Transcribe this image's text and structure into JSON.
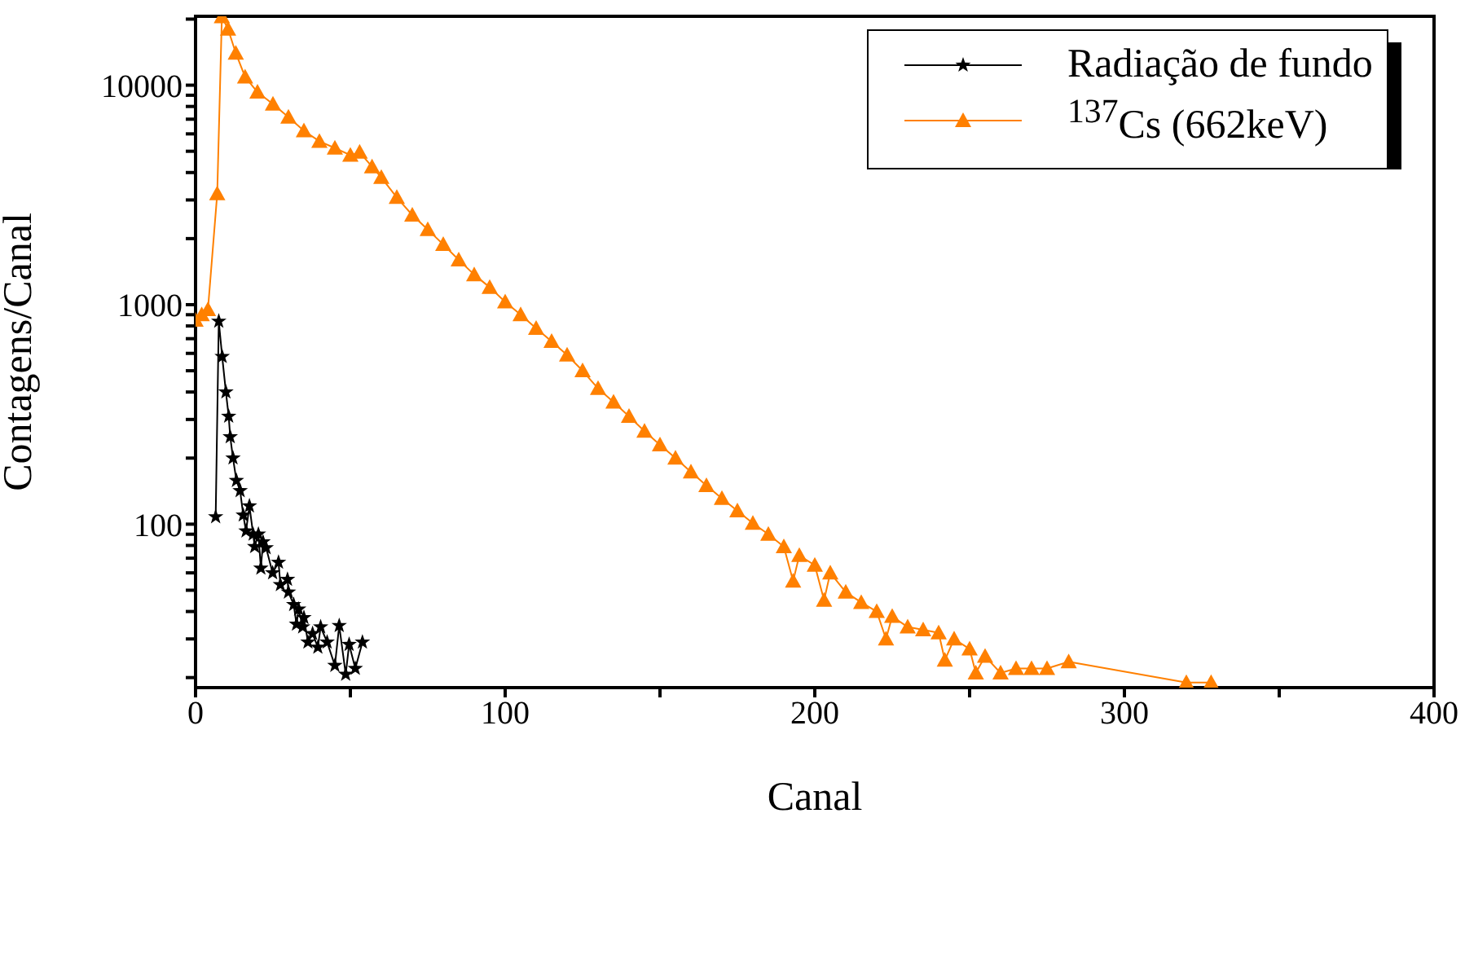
{
  "chart_data": {
    "type": "line",
    "xlabel": "Canal",
    "ylabel": "Contagens/Canal",
    "log": "y",
    "legend": "top right",
    "xlim": [
      0,
      400
    ],
    "xticks": [
      0,
      {
        "value": 50,
        "label": null
      },
      100,
      {
        "value": 150,
        "label": null
      },
      200,
      {
        "value": 250,
        "label": null
      },
      300,
      {
        "value": 350,
        "label": null
      },
      400
    ],
    "ylim": [
      18,
      20600
    ],
    "yticks": [
      {
        "value": 20,
        "label": null
      },
      {
        "value": 30,
        "label": null
      },
      {
        "value": 40,
        "label": null
      },
      {
        "value": 50,
        "label": null
      },
      {
        "value": 60,
        "label": null
      },
      {
        "value": 70,
        "label": null
      },
      {
        "value": 80,
        "label": null
      },
      {
        "value": 90,
        "label": null
      },
      100,
      {
        "value": 200,
        "label": null
      },
      {
        "value": 300,
        "label": null
      },
      {
        "value": 400,
        "label": null
      },
      {
        "value": 500,
        "label": null
      },
      {
        "value": 600,
        "label": null
      },
      {
        "value": 700,
        "label": null
      },
      {
        "value": 800,
        "label": null
      },
      {
        "value": 900,
        "label": null
      },
      1000,
      {
        "value": 2000,
        "label": null
      },
      {
        "value": 3000,
        "label": null
      },
      {
        "value": 4000,
        "label": null
      },
      {
        "value": 5000,
        "label": null
      },
      {
        "value": 6000,
        "label": null
      },
      {
        "value": 7000,
        "label": null
      },
      {
        "value": 8000,
        "label": null
      },
      {
        "value": 9000,
        "label": null
      },
      10000,
      {
        "value": 20000,
        "label": null
      }
    ],
    "series": [
      {
        "name": "Radiação de fundo",
        "color": "#000000",
        "marker": "star",
        "x": [
          6.5,
          7.5,
          8.6,
          9.8,
          10.7,
          11.2,
          12.1,
          13.2,
          14.4,
          15.4,
          16.3,
          17.4,
          18.6,
          19.1,
          20.3,
          21.1,
          21.8,
          22.8,
          24.9,
          26.8,
          27.4,
          29.7,
          30,
          31.7,
          32.6,
          33.3,
          34.6,
          35,
          36.3,
          37.8,
          39.5,
          40.4,
          42.5,
          45,
          46.4,
          48.5,
          49.6,
          51.6,
          53.9
        ],
        "values": [
          108,
          840,
          580,
          400,
          310,
          250,
          200,
          158,
          142,
          110,
          93,
          121,
          90,
          79,
          90,
          63,
          83,
          78,
          60,
          67,
          53,
          56,
          49,
          43,
          35,
          41,
          34,
          37.5,
          29,
          31.7,
          27.5,
          34,
          29,
          22.7,
          34.5,
          20.7,
          28.3,
          22,
          29
        ]
      },
      {
        "name": "$^{137}$Cs (662keV)",
        "color": "#ff8000",
        "marker": "triangle",
        "x": [
          0,
          2,
          4,
          7,
          8.5,
          10.5,
          13,
          16,
          20,
          25,
          30,
          35,
          40,
          45,
          50,
          53,
          57,
          60,
          65,
          70,
          75,
          80,
          85,
          90,
          95,
          100,
          105,
          110,
          115,
          120,
          125,
          130,
          135,
          140,
          145,
          150,
          155,
          160,
          165,
          170,
          175,
          180,
          185,
          190,
          193,
          195,
          200,
          203,
          205,
          210,
          215,
          220,
          223,
          225,
          230,
          235,
          240,
          242,
          245,
          250,
          252,
          255,
          260,
          265,
          270,
          275,
          282,
          320,
          328
        ],
        "values": [
          850,
          900,
          950,
          3200,
          20500,
          18000,
          14000,
          10900,
          9300,
          8200,
          7150,
          6200,
          5550,
          5170,
          4800,
          4950,
          4250,
          3800,
          3080,
          2560,
          2200,
          1880,
          1600,
          1370,
          1200,
          1030,
          900,
          780,
          680,
          590,
          500,
          415,
          360,
          310,
          265,
          230,
          200,
          173,
          150,
          131,
          115,
          101,
          90,
          79,
          55,
          72,
          65,
          45,
          60,
          49,
          44,
          40,
          30,
          38,
          34,
          33,
          32,
          24,
          30,
          27,
          21,
          25,
          21,
          22,
          22,
          22,
          23.6,
          19,
          19
        ]
      }
    ]
  }
}
